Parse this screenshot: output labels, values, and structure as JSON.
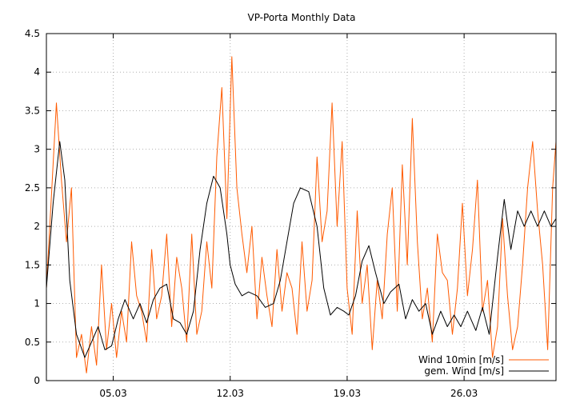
{
  "chart_data": {
    "type": "line",
    "title": "VP-Porta Monthly Data",
    "xlabel": "",
    "ylabel": "",
    "x_unit": "day of month (March)",
    "xlim": [
      1,
      31.5
    ],
    "ylim": [
      0,
      4.5
    ],
    "x_ticks": [
      {
        "label": "05.03",
        "value": 5
      },
      {
        "label": "12.03",
        "value": 12
      },
      {
        "label": "19.03",
        "value": 19
      },
      {
        "label": "26.03",
        "value": 26
      }
    ],
    "y_ticks": [
      {
        "label": "0",
        "value": 0
      },
      {
        "label": "0.5",
        "value": 0.5
      },
      {
        "label": "1",
        "value": 1
      },
      {
        "label": "1.5",
        "value": 1.5
      },
      {
        "label": "2",
        "value": 2
      },
      {
        "label": "2.5",
        "value": 2.5
      },
      {
        "label": "3",
        "value": 3
      },
      {
        "label": "3.5",
        "value": 3.5
      },
      {
        "label": "4",
        "value": 4
      },
      {
        "label": "4.5",
        "value": 4.5
      }
    ],
    "grid": true,
    "legend_position": "bottom-right",
    "series": [
      {
        "name": "Wind 10min [m/s]",
        "color": "#ff5a00",
        "x": [
          1.0,
          1.3,
          1.6,
          1.9,
          2.2,
          2.5,
          2.8,
          3.1,
          3.4,
          3.7,
          4.0,
          4.3,
          4.6,
          4.9,
          5.2,
          5.5,
          5.8,
          6.1,
          6.4,
          6.7,
          7.0,
          7.3,
          7.6,
          7.9,
          8.2,
          8.5,
          8.8,
          9.1,
          9.4,
          9.7,
          10.0,
          10.3,
          10.6,
          10.9,
          11.2,
          11.5,
          11.8,
          12.1,
          12.4,
          12.7,
          13.0,
          13.3,
          13.6,
          13.9,
          14.2,
          14.5,
          14.8,
          15.1,
          15.4,
          15.7,
          16.0,
          16.3,
          16.6,
          16.9,
          17.2,
          17.5,
          17.8,
          18.1,
          18.4,
          18.7,
          19.0,
          19.3,
          19.6,
          19.9,
          20.2,
          20.5,
          20.8,
          21.1,
          21.4,
          21.7,
          22.0,
          22.3,
          22.6,
          22.9,
          23.2,
          23.5,
          23.8,
          24.1,
          24.4,
          24.7,
          25.0,
          25.3,
          25.6,
          25.9,
          26.2,
          26.5,
          26.8,
          27.1,
          27.4,
          27.7,
          28.0,
          28.3,
          28.6,
          28.9,
          29.2,
          29.5,
          29.8,
          30.1,
          30.4,
          30.7,
          31.0,
          31.3,
          31.5
        ],
        "y": [
          1.2,
          2.4,
          3.6,
          2.6,
          1.8,
          2.5,
          0.3,
          0.6,
          0.1,
          0.7,
          0.2,
          1.5,
          0.4,
          1.0,
          0.3,
          0.9,
          0.5,
          1.8,
          1.1,
          0.9,
          0.5,
          1.7,
          0.8,
          1.1,
          1.9,
          0.7,
          1.6,
          1.2,
          0.5,
          1.9,
          0.6,
          0.9,
          1.8,
          1.2,
          2.9,
          3.8,
          2.1,
          4.2,
          2.5,
          1.9,
          1.4,
          2.0,
          0.8,
          1.6,
          1.1,
          0.7,
          1.7,
          0.9,
          1.4,
          1.2,
          0.6,
          1.8,
          0.9,
          1.3,
          2.9,
          1.8,
          2.2,
          3.6,
          2.0,
          3.1,
          1.2,
          0.6,
          2.2,
          1.0,
          1.5,
          0.4,
          1.3,
          0.8,
          1.9,
          2.5,
          0.9,
          2.8,
          1.5,
          3.4,
          1.8,
          0.8,
          1.2,
          0.5,
          1.9,
          1.4,
          1.3,
          0.6,
          1.2,
          2.3,
          1.1,
          1.7,
          2.6,
          0.9,
          1.3,
          0.3,
          0.7,
          2.1,
          1.1,
          0.4,
          0.7,
          1.5,
          2.5,
          3.1,
          2.2,
          1.5,
          0.4,
          2.5,
          3.1
        ]
      },
      {
        "name": "gem. Wind [m/s]",
        "color": "#000000",
        "x": [
          1.0,
          1.4,
          1.8,
          2.1,
          2.4,
          2.8,
          3.3,
          3.7,
          4.1,
          4.5,
          4.9,
          5.3,
          5.7,
          6.2,
          6.6,
          7.0,
          7.4,
          7.8,
          8.2,
          8.6,
          9.0,
          9.4,
          9.8,
          10.2,
          10.6,
          11.0,
          11.4,
          11.8,
          12.0,
          12.3,
          12.7,
          13.1,
          13.6,
          14.1,
          14.6,
          15.0,
          15.4,
          15.8,
          16.2,
          16.7,
          17.2,
          17.6,
          18.0,
          18.4,
          18.8,
          19.1,
          19.5,
          19.9,
          20.3,
          20.7,
          21.2,
          21.6,
          22.1,
          22.5,
          22.9,
          23.3,
          23.7,
          24.1,
          24.6,
          25.0,
          25.4,
          25.8,
          26.2,
          26.7,
          27.1,
          27.5,
          28.0,
          28.4,
          28.8,
          29.2,
          29.6,
          30.0,
          30.4,
          30.8,
          31.2,
          31.5
        ],
        "y": [
          1.2,
          2.3,
          3.1,
          2.6,
          1.3,
          0.6,
          0.3,
          0.5,
          0.7,
          0.4,
          0.45,
          0.8,
          1.05,
          0.8,
          1.0,
          0.75,
          1.05,
          1.2,
          1.25,
          0.8,
          0.75,
          0.6,
          0.9,
          1.7,
          2.3,
          2.65,
          2.5,
          1.9,
          1.5,
          1.25,
          1.1,
          1.15,
          1.1,
          0.95,
          1.0,
          1.3,
          1.8,
          2.3,
          2.5,
          2.45,
          2.0,
          1.2,
          0.85,
          0.95,
          0.9,
          0.85,
          1.1,
          1.55,
          1.75,
          1.4,
          1.0,
          1.15,
          1.25,
          0.8,
          1.05,
          0.9,
          1.0,
          0.6,
          0.9,
          0.7,
          0.85,
          0.7,
          0.9,
          0.65,
          0.95,
          0.6,
          1.6,
          2.35,
          1.7,
          2.2,
          2.0,
          2.2,
          2.0,
          2.2,
          2.0,
          2.1
        ]
      }
    ]
  }
}
